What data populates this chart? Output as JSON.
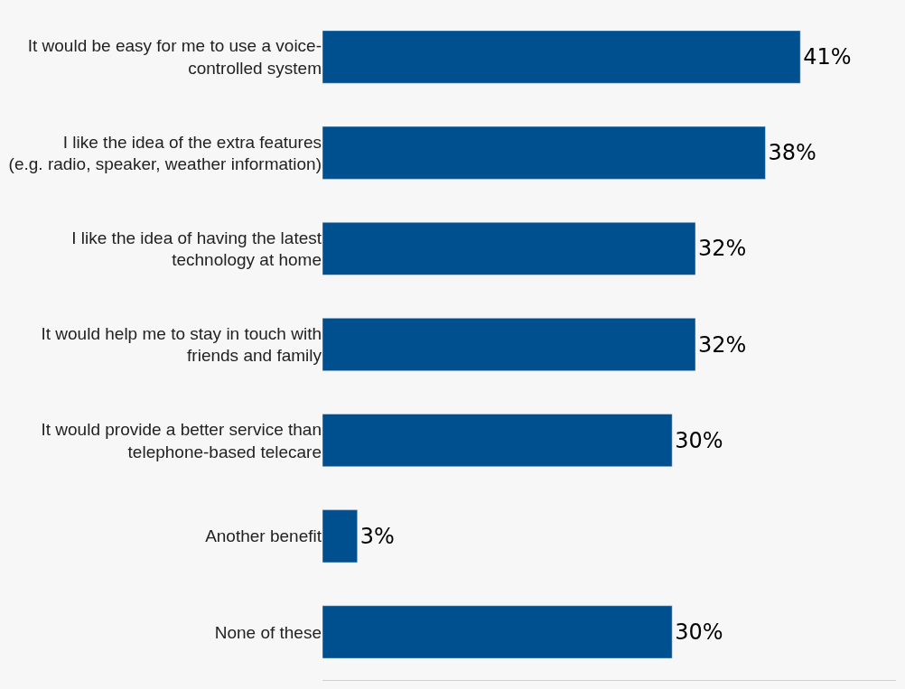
{
  "chart_data": {
    "type": "bar",
    "orientation": "horizontal",
    "categories": [
      "It would be easy for me to use a voice-controlled system",
      "I like the idea of the extra features (e.g. radio, speaker, weather information)",
      "I like the idea of having the latest technology at home",
      "It would help me to stay in touch with friends and family",
      "It would provide a better service than telephone-based telecare",
      "Another benefit",
      "None of these"
    ],
    "values": [
      41,
      38,
      32,
      32,
      30,
      3,
      30
    ],
    "value_labels": [
      "41%",
      "38%",
      "32%",
      "32%",
      "30%",
      "3%",
      "30%"
    ],
    "color": "#00508f",
    "grid": false,
    "legend": false
  }
}
